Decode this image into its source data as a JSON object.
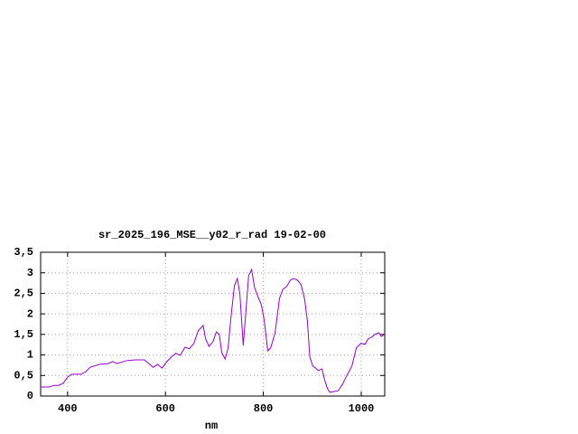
{
  "chart_data": {
    "type": "line",
    "title": "sr_2025_196_MSE__y02_r_rad 19-02-00",
    "x_label": "nm",
    "xlim": [
      345,
      1048
    ],
    "ylim": [
      0,
      3.5
    ],
    "xticks": [
      400,
      600,
      800,
      1000
    ],
    "yticks": [
      0,
      {
        "value": 0.5,
        "label": "0,5"
      },
      1,
      {
        "value": 1.5,
        "label": "1,5"
      },
      2,
      {
        "value": 2.5,
        "label": "2,5"
      },
      3,
      {
        "value": 3.5,
        "label": "3,5"
      }
    ],
    "grid": true,
    "x": [
      345,
      363,
      372,
      382,
      391,
      400,
      409,
      428,
      437,
      446,
      465,
      483,
      492,
      501,
      520,
      538,
      557,
      566,
      575,
      584,
      593,
      603,
      612,
      621,
      630,
      640,
      649,
      658,
      667,
      677,
      682,
      689,
      697,
      704,
      710,
      715,
      722,
      728,
      734,
      741,
      747,
      752,
      759,
      765,
      770,
      776,
      782,
      789,
      796,
      802,
      809,
      815,
      824,
      833,
      840,
      848,
      855,
      862,
      870,
      877,
      884,
      890,
      895,
      901,
      907,
      912,
      920,
      925,
      931,
      936,
      944,
      953,
      962,
      971,
      981,
      990,
      999,
      1008,
      1014,
      1021,
      1028,
      1036,
      1041,
      1047
    ],
    "series": [
      {
        "color": "#9400d3",
        "values": [
          0.22,
          0.22,
          0.26,
          0.26,
          0.31,
          0.46,
          0.53,
          0.53,
          0.59,
          0.7,
          0.77,
          0.79,
          0.84,
          0.79,
          0.86,
          0.88,
          0.88,
          0.79,
          0.7,
          0.77,
          0.68,
          0.84,
          0.95,
          1.04,
          0.99,
          1.19,
          1.15,
          1.28,
          1.59,
          1.72,
          1.39,
          1.21,
          1.32,
          1.56,
          1.5,
          1.06,
          0.9,
          1.17,
          1.94,
          2.69,
          2.86,
          2.49,
          1.23,
          2.16,
          2.93,
          3.08,
          2.64,
          2.42,
          2.22,
          1.83,
          1.1,
          1.17,
          1.54,
          2.38,
          2.6,
          2.67,
          2.82,
          2.86,
          2.82,
          2.71,
          2.38,
          1.83,
          0.95,
          0.73,
          0.68,
          0.62,
          0.66,
          0.4,
          0.18,
          0.09,
          0.11,
          0.13,
          0.29,
          0.51,
          0.73,
          1.17,
          1.28,
          1.26,
          1.39,
          1.43,
          1.5,
          1.54,
          1.45,
          1.5
        ]
      }
    ]
  }
}
